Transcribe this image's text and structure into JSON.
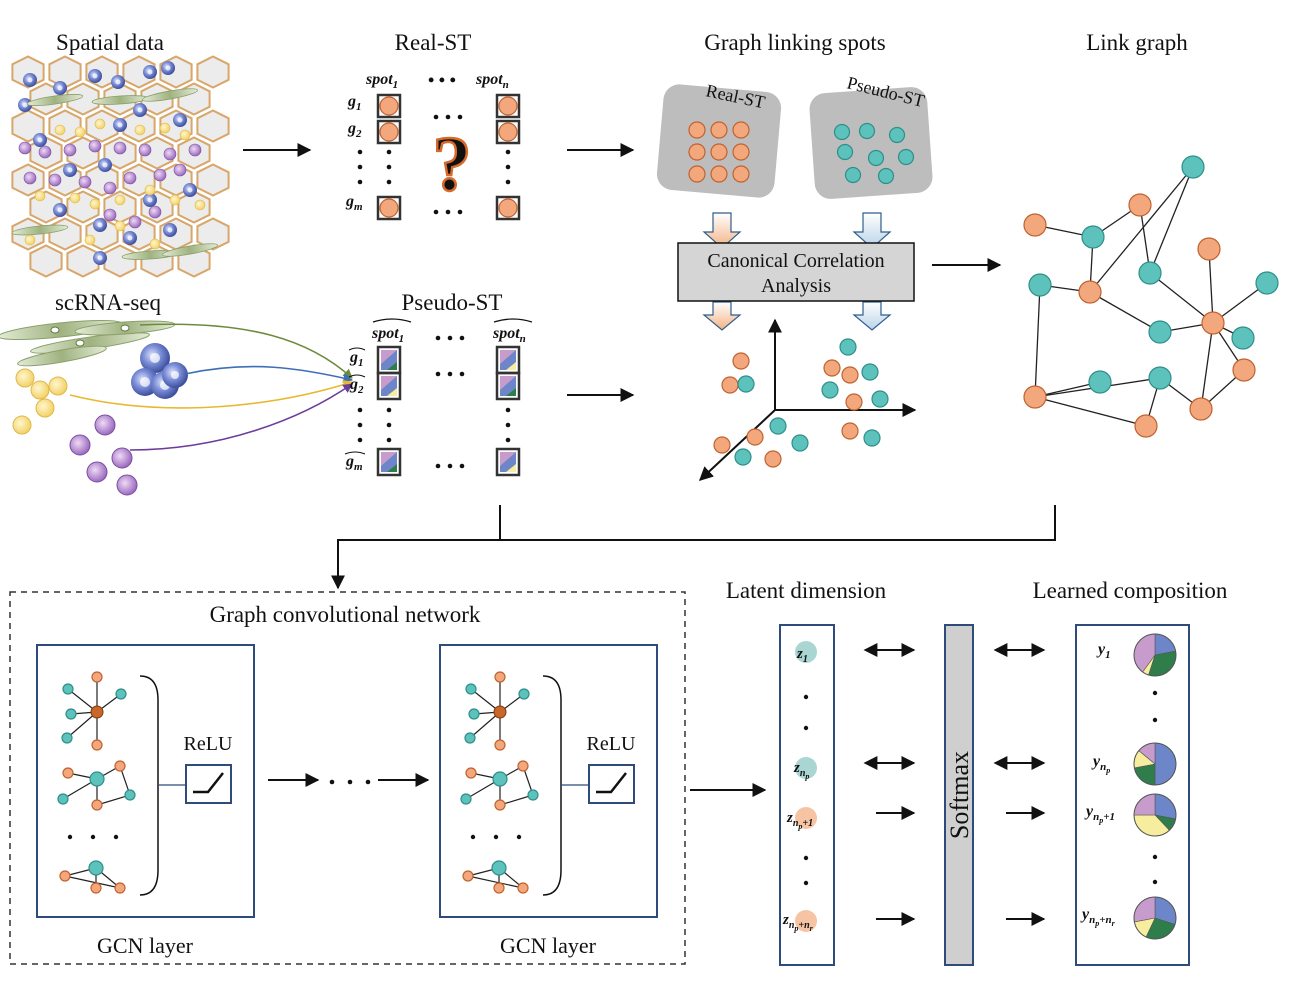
{
  "sections": {
    "spatial_data": "Spatial data",
    "real_st": "Real-ST",
    "graph_linking": "Graph linking spots",
    "link_graph": "Link graph",
    "scrna": "scRNA-seq",
    "pseudo_st": "Pseudo-ST",
    "latent": "Latent dimension",
    "learned": "Learned composition"
  },
  "real_st": {
    "spot1_base": "spot",
    "spot1_sub": "1",
    "spotn_base": "spot",
    "spotn_sub": "n",
    "g1_base": "g",
    "g1_sub": "1",
    "g2_base": "g",
    "g2_sub": "2",
    "gm_base": "g",
    "gm_sub": "m",
    "question": "?"
  },
  "pseudo_st": {
    "spot1_base": "spot",
    "spot1_sub": "1",
    "spotn_base": "spot",
    "spotn_sub": "n",
    "g1_base": "g",
    "g1_sub": "1",
    "g2_base": "g",
    "g2_sub": "2",
    "gm_base": "g",
    "gm_sub": "m"
  },
  "cca": {
    "real_label": "Real-ST",
    "pseudo_label": "Pseudo-ST",
    "box_line1": "Canonical Correlation",
    "box_line2": "Analysis"
  },
  "gcn": {
    "title": "Graph convolutional network",
    "relu": "ReLU",
    "layer_label": "GCN layer"
  },
  "latent": {
    "z1_base": "z",
    "z1_sub": "1",
    "znp_base": "z",
    "znp_sub": "n",
    "znp_subsub": "p",
    "znp1_base": "z",
    "znp1_sub": "n",
    "znp1_subsub": "p",
    "znp1_tail": "+1",
    "znpr_base": "z",
    "znpr_sub": "n",
    "znpr_subsub": "p",
    "znpr_tail": "+n",
    "znpr_subsub2": "r"
  },
  "softmax": "Softmax",
  "learned": {
    "y1_base": "y",
    "y1_sub": "1",
    "ynp_base": "y",
    "ynp_sub": "n",
    "ynp_subsub": "p",
    "ynp1_base": "y",
    "ynp1_sub": "n",
    "ynp1_subsub": "p",
    "ynp1_tail": "+1",
    "ynpr_base": "y",
    "ynpr_sub": "n",
    "ynpr_subsub": "p",
    "ynpr_tail": "+n",
    "ynpr_subsub2": "r",
    "pies": [
      {
        "blue": 0.22,
        "green": 0.33,
        "yellow": 0.05,
        "purple": 0.4
      },
      {
        "blue": 0.5,
        "green": 0.22,
        "yellow": 0.14,
        "purple": 0.14
      },
      {
        "blue": 0.28,
        "green": 0.1,
        "yellow": 0.37,
        "purple": 0.25
      },
      {
        "blue": 0.3,
        "green": 0.27,
        "yellow": 0.15,
        "purple": 0.28
      }
    ]
  },
  "colors": {
    "orange": "#F3A77C",
    "orange_stroke": "#C0622F",
    "teal": "#5CC2BB",
    "teal_stroke": "#2E8F8A",
    "pie_blue": "#6C86C9",
    "pie_green": "#2E7D4A",
    "pie_yellow": "#F6EE9E",
    "pie_purple": "#C79BCB",
    "box_frame": "#2F4B7C",
    "cca_fill": "#D5D5D5",
    "softmax_fill": "#CFCFCF"
  },
  "icons": [
    "tissue-hexagon-icon",
    "cell-type-icons",
    "question-mark-icon",
    "relu-activation-icon"
  ]
}
